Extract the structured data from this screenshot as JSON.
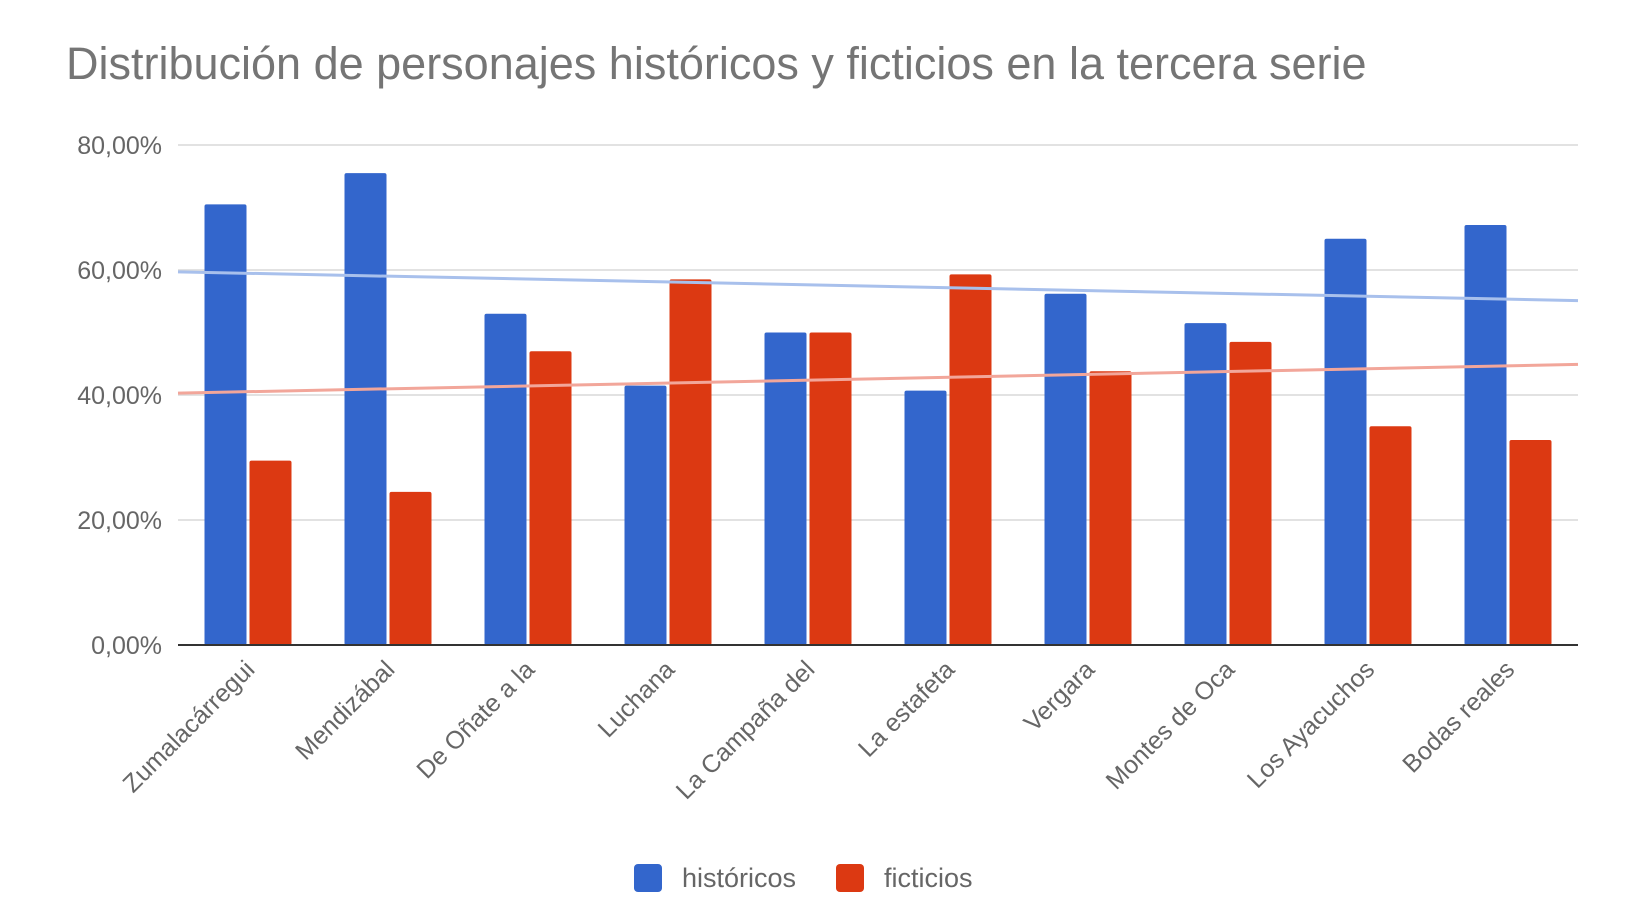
{
  "chart_data": {
    "type": "bar",
    "title": "Distribución de personajes históricos y ficticios en la tercera serie",
    "xlabel": "",
    "ylabel": "",
    "ylim": [
      0,
      0.8
    ],
    "y_ticks": [
      {
        "value": 0,
        "label": "0,00%"
      },
      {
        "value": 0.2,
        "label": "20,00%"
      },
      {
        "value": 0.4,
        "label": "40,00%"
      },
      {
        "value": 0.6,
        "label": "60,00%"
      },
      {
        "value": 0.8,
        "label": "80,00%"
      }
    ],
    "categories": [
      "Zumalacárregui",
      "Mendizábal",
      "De Oñate a la",
      "Luchana",
      "La Campaña del",
      "La estafeta",
      "Vergara",
      "Montes de Oca",
      "Los Ayacuchos",
      "Bodas reales"
    ],
    "series": [
      {
        "name": "históricos",
        "color": "#3366cc",
        "values": [
          0.705,
          0.755,
          0.53,
          0.415,
          0.5,
          0.407,
          0.562,
          0.515,
          0.65,
          0.672
        ]
      },
      {
        "name": "ficticios",
        "color": "#dc3912",
        "values": [
          0.295,
          0.245,
          0.47,
          0.585,
          0.5,
          0.593,
          0.438,
          0.485,
          0.35,
          0.328
        ]
      }
    ],
    "trendlines": [
      {
        "series": "históricos",
        "color": "#a8c0ec",
        "start": 0.597,
        "end": 0.551
      },
      {
        "series": "ficticios",
        "color": "#f2a69a",
        "start": 0.403,
        "end": 0.449
      }
    ],
    "grid": true,
    "legend_position": "bottom"
  }
}
